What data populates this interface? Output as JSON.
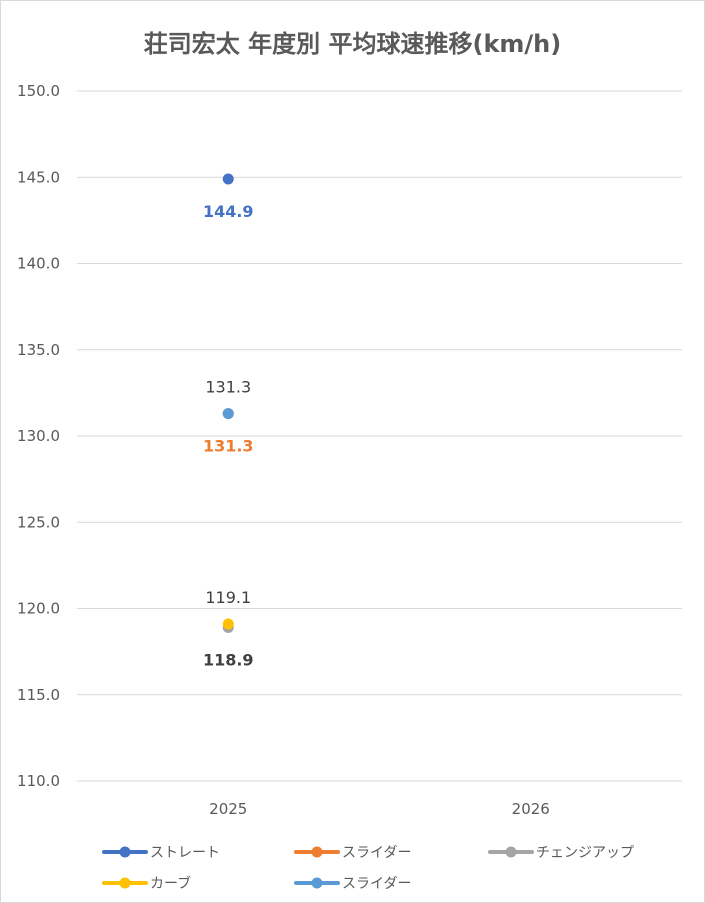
{
  "chart_data": {
    "type": "line",
    "title": "荘司宏太 年度別 平均球速推移(km/h)",
    "xlabel": "",
    "ylabel": "",
    "categories": [
      "2025",
      "2026"
    ],
    "ylim": [
      110,
      150
    ],
    "yticks": [
      "150.0",
      "145.0",
      "140.0",
      "135.0",
      "130.0",
      "125.0",
      "120.0",
      "115.0",
      "110.0"
    ],
    "grid": true,
    "legend_position": "bottom",
    "series": [
      {
        "name": "ストレート",
        "color": "#4472c4",
        "values": [
          144.9,
          null
        ],
        "labels": [
          "144.9",
          ""
        ],
        "label_pos": "below",
        "label_bold": true,
        "label_color": "#4472c4"
      },
      {
        "name": "スライダー",
        "color": "#ed7d31",
        "values": [
          131.3,
          null
        ],
        "labels": [
          "131.3",
          ""
        ],
        "label_pos": "below",
        "label_bold": true,
        "label_color": "#ed7d31"
      },
      {
        "name": "チェンジアップ",
        "color": "#a5a5a5",
        "values": [
          118.9,
          null
        ],
        "labels": [
          "118.9",
          ""
        ],
        "label_pos": "below",
        "label_bold": true,
        "label_color": "#404040"
      },
      {
        "name": "カーブ",
        "color": "#ffc000",
        "values": [
          119.1,
          null
        ],
        "labels": [
          "119.1",
          ""
        ],
        "label_pos": "above",
        "label_bold": false,
        "label_color": "#404040"
      },
      {
        "name": "スライダー",
        "color": "#5b9bd5",
        "values": [
          131.3,
          null
        ],
        "labels": [
          "131.3",
          ""
        ],
        "label_pos": "above",
        "label_bold": false,
        "label_color": "#404040"
      }
    ]
  }
}
